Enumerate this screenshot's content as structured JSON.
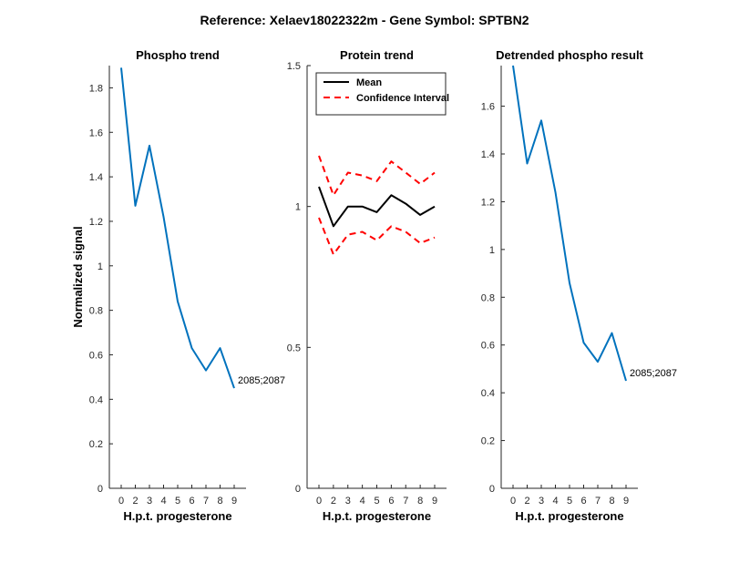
{
  "suptitle": "Reference:  Xelaev18022322m - Gene Symbol:  SPTBN2",
  "chart_data": [
    {
      "type": "line",
      "title": "Phospho trend",
      "xlabel": "H.p.t. progesterone",
      "ylabel": "Normalized signal",
      "categories": [
        "0",
        "2",
        "3",
        "4",
        "5",
        "6",
        "7",
        "8",
        "9"
      ],
      "ylim": [
        0,
        1.9
      ],
      "yticks": [
        0,
        0.2,
        0.4,
        0.6,
        0.8,
        1,
        1.2,
        1.4,
        1.6,
        1.8
      ],
      "series": [
        {
          "values": [
            1.89,
            1.27,
            1.54,
            1.22,
            0.84,
            0.63,
            0.53,
            0.63,
            0.45
          ],
          "color": "#0072BD",
          "style": "solid"
        }
      ],
      "end_label": "2085;2087"
    },
    {
      "type": "line",
      "title": "Protein trend",
      "xlabel": "H.p.t. progesterone",
      "ylabel": "",
      "categories": [
        "0",
        "2",
        "3",
        "4",
        "5",
        "6",
        "7",
        "8",
        "9"
      ],
      "ylim": [
        0,
        1.5
      ],
      "yticks": [
        0,
        0.5,
        1,
        1.5
      ],
      "legend": "top-left",
      "series": [
        {
          "name": "Mean",
          "values": [
            1.07,
            0.93,
            1.0,
            1.0,
            0.98,
            1.04,
            1.01,
            0.97,
            1.0
          ],
          "color": "#000000",
          "style": "solid"
        },
        {
          "name": "Confidence Interval",
          "values": [
            1.18,
            1.04,
            1.12,
            1.11,
            1.09,
            1.16,
            1.12,
            1.08,
            1.12
          ],
          "color": "#ff0000",
          "style": "dashed"
        },
        {
          "values": [
            0.96,
            0.83,
            0.9,
            0.91,
            0.88,
            0.93,
            0.91,
            0.87,
            0.89
          ],
          "color": "#ff0000",
          "style": "dashed"
        }
      ]
    },
    {
      "type": "line",
      "title": "Detrended phospho result",
      "xlabel": "H.p.t. progesterone",
      "ylabel": "",
      "categories": [
        "0",
        "2",
        "3",
        "4",
        "5",
        "6",
        "7",
        "8",
        "9"
      ],
      "ylim": [
        0,
        1.77
      ],
      "yticks": [
        0,
        0.2,
        0.4,
        0.6,
        0.8,
        1,
        1.2,
        1.4,
        1.6
      ],
      "series": [
        {
          "values": [
            1.77,
            1.36,
            1.54,
            1.24,
            0.86,
            0.61,
            0.53,
            0.65,
            0.45
          ],
          "color": "#0072BD",
          "style": "solid"
        }
      ],
      "end_label": "2085;2087"
    }
  ]
}
